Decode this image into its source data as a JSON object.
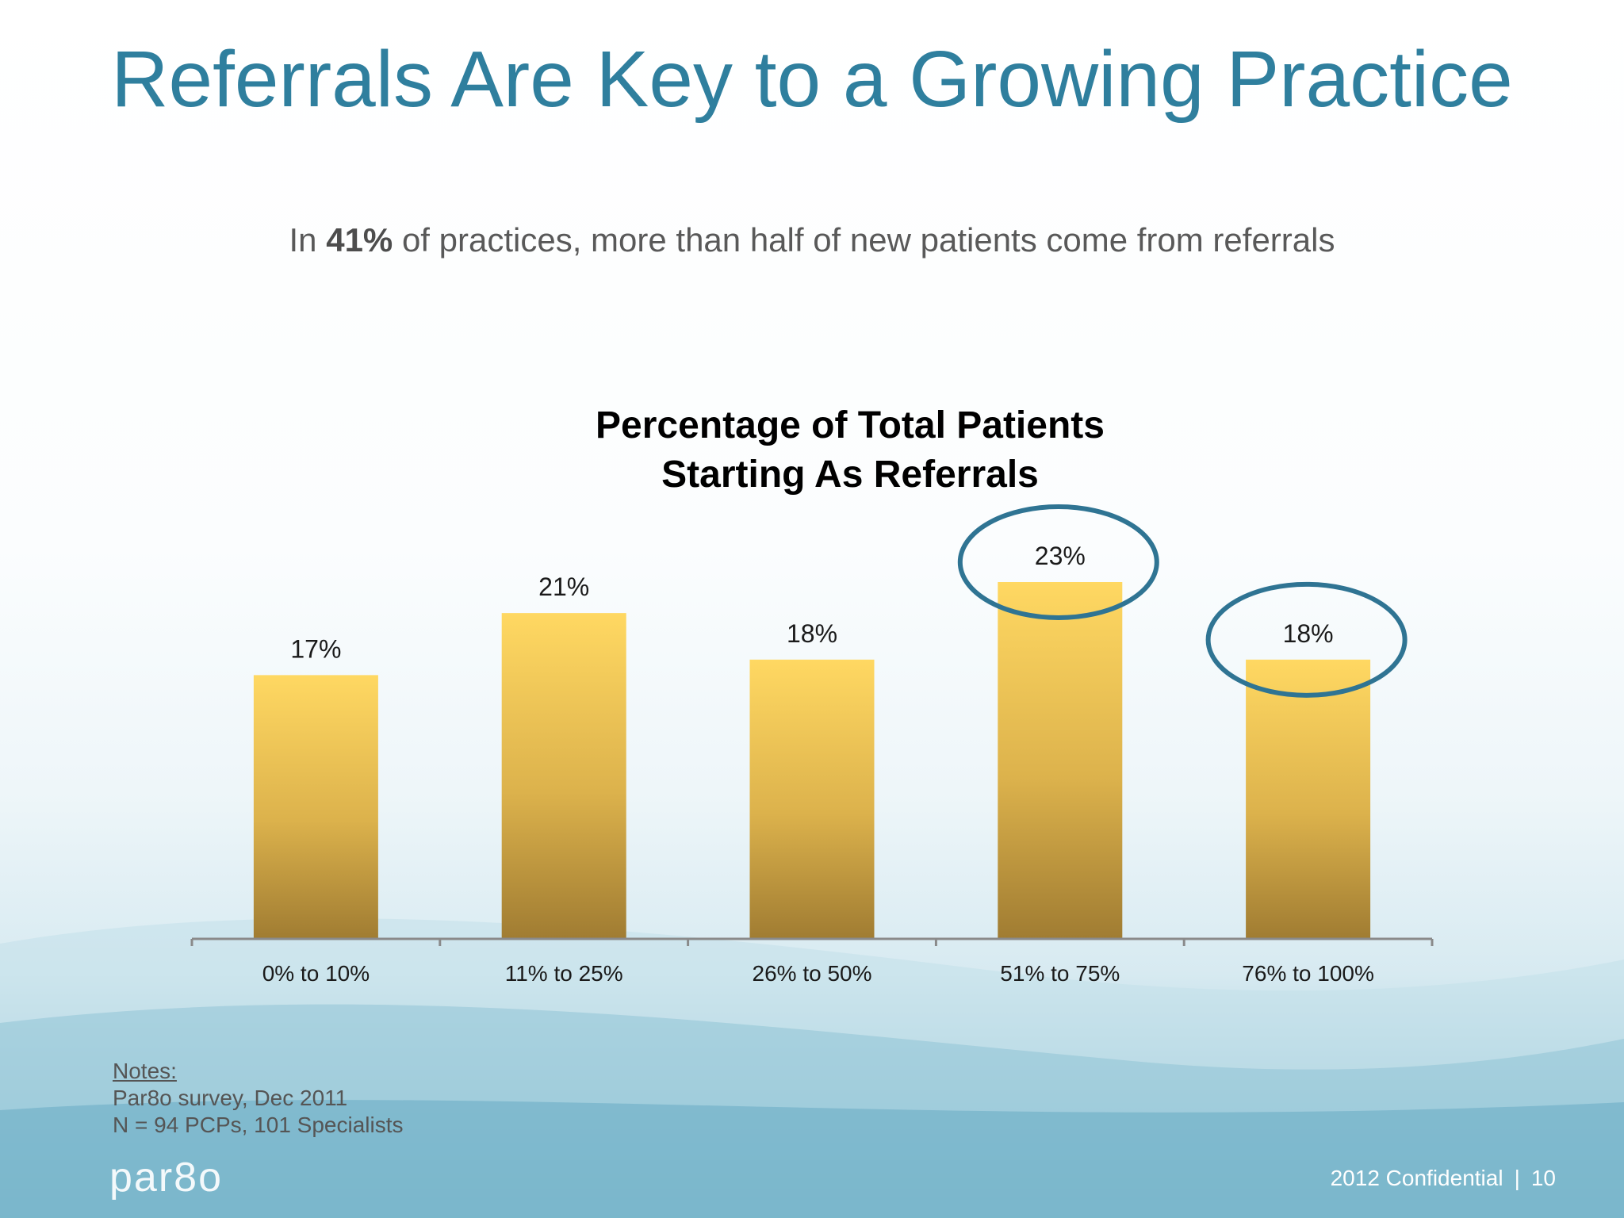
{
  "slide": {
    "title": "Referrals Are Key to a Growing Practice",
    "subtitle": {
      "prefix": "In ",
      "highlight": "41%",
      "suffix": " of practices, more than half of new patients come from referrals"
    }
  },
  "chart_data": {
    "type": "bar",
    "title_lines": [
      "Percentage of Total Patients",
      "Starting As Referrals"
    ],
    "categories": [
      "0% to 10%",
      "11% to 25%",
      "26% to 50%",
      "51% to 75%",
      "76% to 100%"
    ],
    "values": [
      17,
      21,
      18,
      23,
      18
    ],
    "value_labels": [
      "17%",
      "21%",
      "18%",
      "23%",
      "18%"
    ],
    "highlighted_categories": [
      "51% to 75%",
      "76% to 100%"
    ],
    "ylim": [
      0,
      23
    ],
    "grid": false,
    "legend": "none",
    "bar_color_top": "#ffd862",
    "bar_color_bottom": "#a07c32",
    "highlight_color": "#2f7493"
  },
  "notes": {
    "heading": "Notes:",
    "lines": [
      "Par8o survey, Dec 2011",
      "N = 94 PCPs, 101 Specialists"
    ]
  },
  "logo": {
    "text": "par8o"
  },
  "footer": {
    "confidential": "2012 Confidential",
    "separator": "|",
    "page_number": "10"
  }
}
